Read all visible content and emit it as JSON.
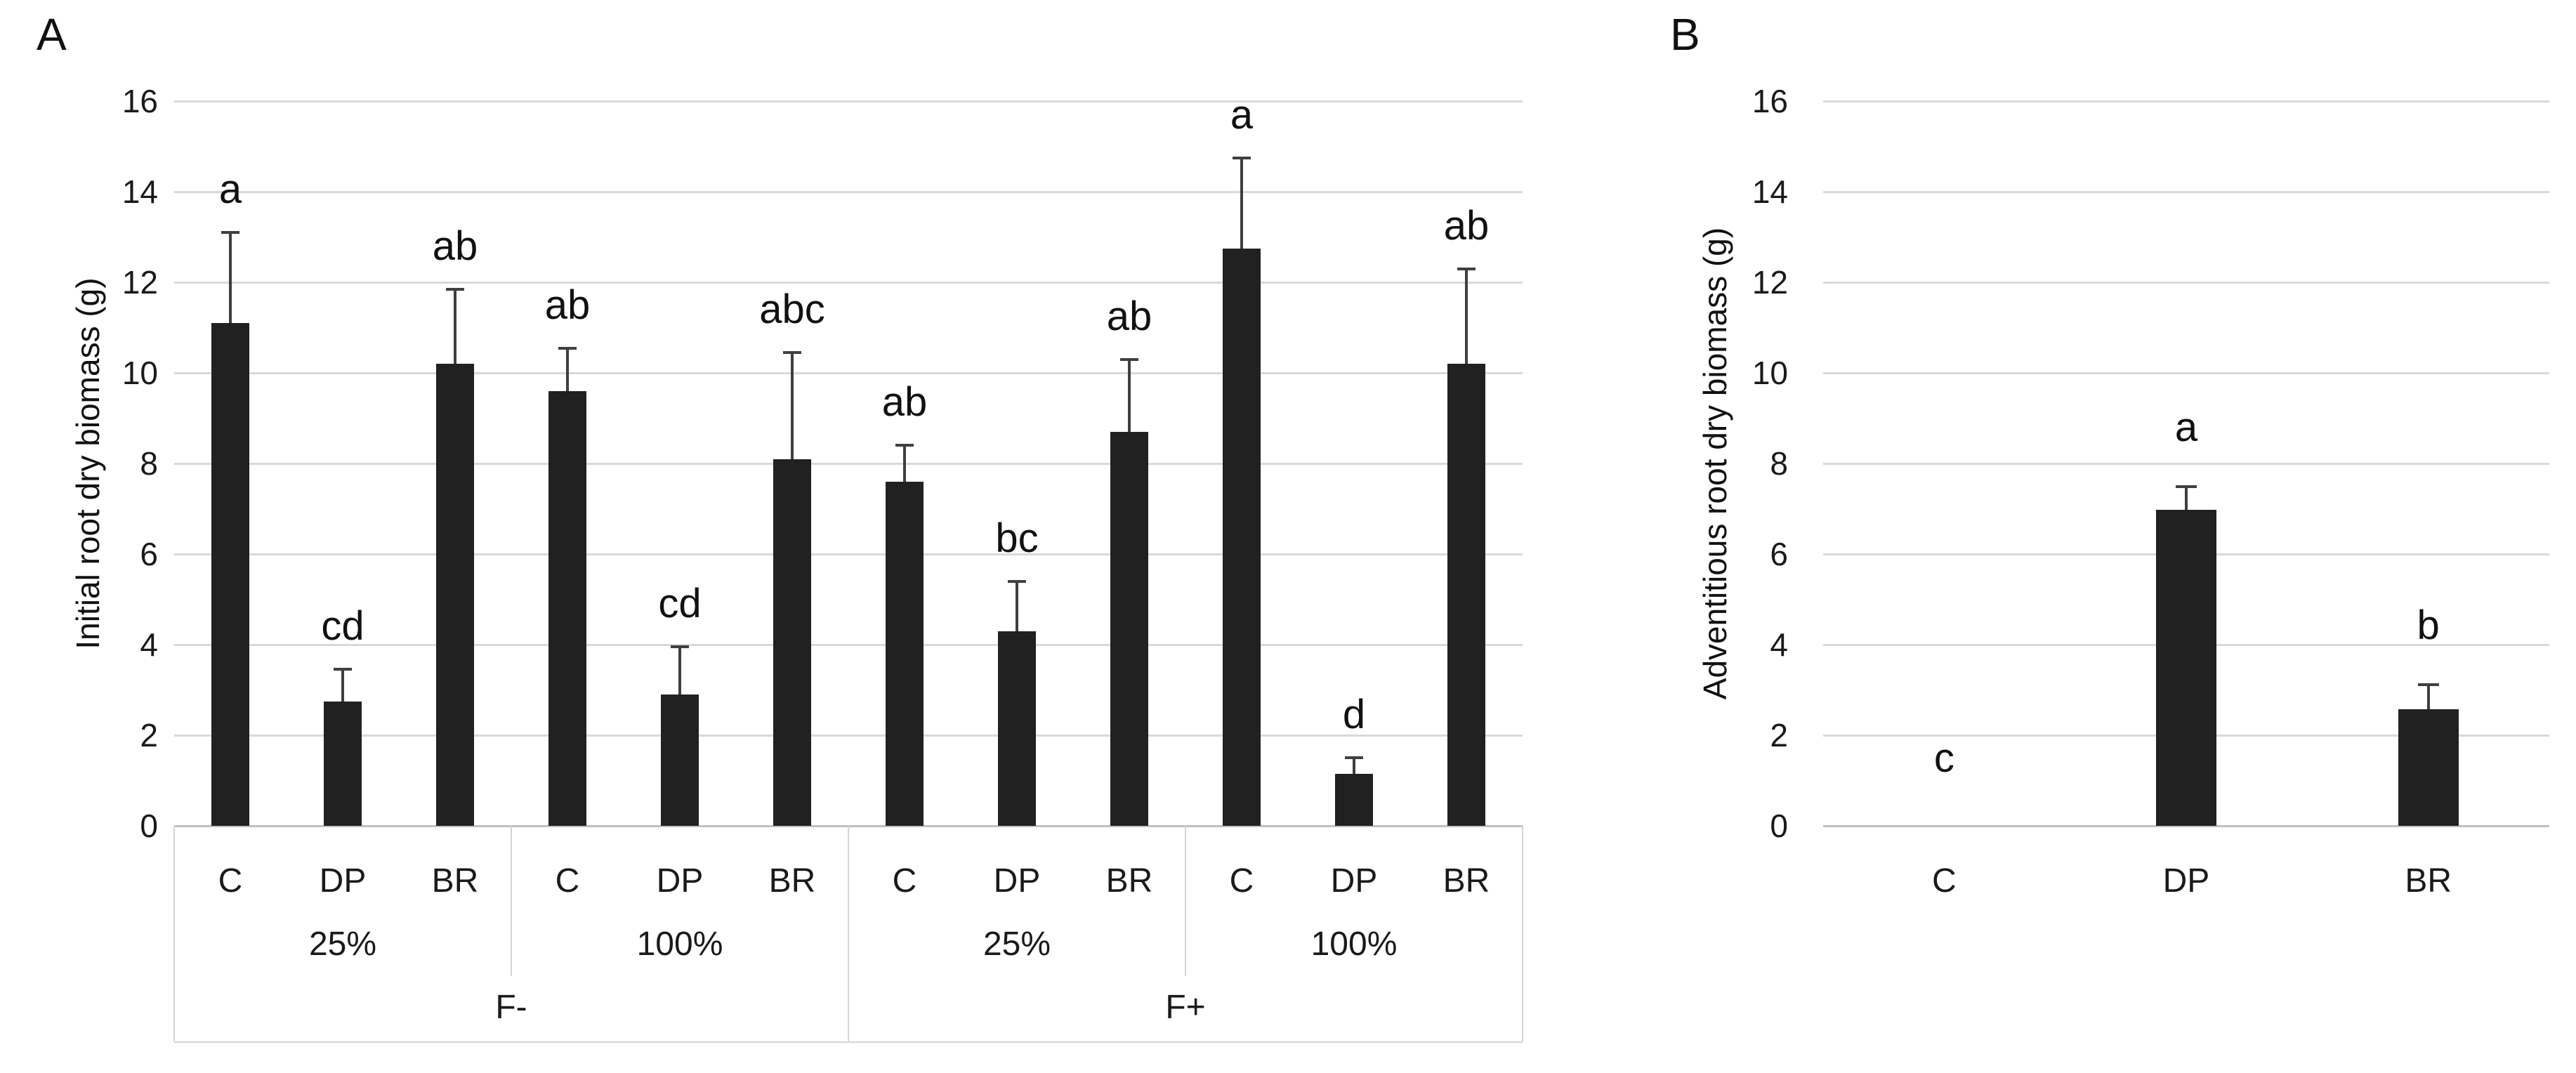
{
  "panels": [
    {
      "label": "A"
    },
    {
      "label": "B"
    }
  ],
  "colors": {
    "background": "#ffffff",
    "bar": "#212121",
    "gridline": "#d9d9d9",
    "axis_line": "#bfbfbf",
    "error_bar": "#3f3f3f",
    "table_border": "#d4d4d4",
    "text": "#000000"
  },
  "chart_data": [
    {
      "type": "bar",
      "panel": "A",
      "title": "",
      "xlabel": "",
      "ylabel": "Initial root dry biomass (g)",
      "ylim": [
        0,
        16
      ],
      "yticks": [
        0,
        2,
        4,
        6,
        8,
        10,
        12,
        14,
        16
      ],
      "grid": true,
      "legend": "none",
      "bar_color": "dark",
      "error_bars": "upper",
      "letter_offset": 0.45,
      "x_levels": {
        "treatment": [
          "C",
          "DP",
          "BR"
        ],
        "water": [
          "25%",
          "100%"
        ],
        "fertilizer": [
          "F-",
          "F+"
        ]
      },
      "series": [
        {
          "fertilizer": "F-",
          "water": "25%",
          "treatment": "C",
          "value": 11.1,
          "error_top": 13.1,
          "letter": "a"
        },
        {
          "fertilizer": "F-",
          "water": "25%",
          "treatment": "DP",
          "value": 2.75,
          "error_top": 3.45,
          "letter": "cd"
        },
        {
          "fertilizer": "F-",
          "water": "25%",
          "treatment": "BR",
          "value": 10.2,
          "error_top": 11.85,
          "letter": "ab"
        },
        {
          "fertilizer": "F-",
          "water": "100%",
          "treatment": "C",
          "value": 9.6,
          "error_top": 10.55,
          "letter": "ab"
        },
        {
          "fertilizer": "F-",
          "water": "100%",
          "treatment": "DP",
          "value": 2.9,
          "error_top": 3.95,
          "letter": "cd"
        },
        {
          "fertilizer": "F-",
          "water": "100%",
          "treatment": "BR",
          "value": 8.1,
          "error_top": 10.45,
          "letter": "abc"
        },
        {
          "fertilizer": "F+",
          "water": "25%",
          "treatment": "C",
          "value": 7.6,
          "error_top": 8.4,
          "letter": "ab"
        },
        {
          "fertilizer": "F+",
          "water": "25%",
          "treatment": "DP",
          "value": 4.3,
          "error_top": 5.4,
          "letter": "bc"
        },
        {
          "fertilizer": "F+",
          "water": "25%",
          "treatment": "BR",
          "value": 8.7,
          "error_top": 10.3,
          "letter": "ab"
        },
        {
          "fertilizer": "F+",
          "water": "100%",
          "treatment": "C",
          "value": 12.75,
          "error_top": 14.75,
          "letter": "a"
        },
        {
          "fertilizer": "F+",
          "water": "100%",
          "treatment": "DP",
          "value": 1.15,
          "error_top": 1.5,
          "letter": "d"
        },
        {
          "fertilizer": "F+",
          "water": "100%",
          "treatment": "BR",
          "value": 10.2,
          "error_top": 12.3,
          "letter": "ab"
        }
      ]
    },
    {
      "type": "bar",
      "panel": "B",
      "title": "",
      "xlabel": "",
      "ylabel": "Adventitious root dry biomass (g)",
      "ylim": [
        0,
        16
      ],
      "yticks": [
        0,
        2,
        4,
        6,
        8,
        10,
        12,
        14,
        16
      ],
      "grid": true,
      "legend": "none",
      "bar_color": "dark",
      "error_bars": "upper",
      "letter_offset": 0.8,
      "categories": [
        "C",
        "DP",
        "BR"
      ],
      "series": [
        {
          "treatment": "C",
          "value": 0,
          "error_top": null,
          "letter": "c",
          "letter_y": 1.0
        },
        {
          "treatment": "DP",
          "value": 6.97,
          "error_top": 7.49,
          "letter": "a"
        },
        {
          "treatment": "BR",
          "value": 2.57,
          "error_top": 3.12,
          "letter": "b"
        }
      ]
    }
  ]
}
